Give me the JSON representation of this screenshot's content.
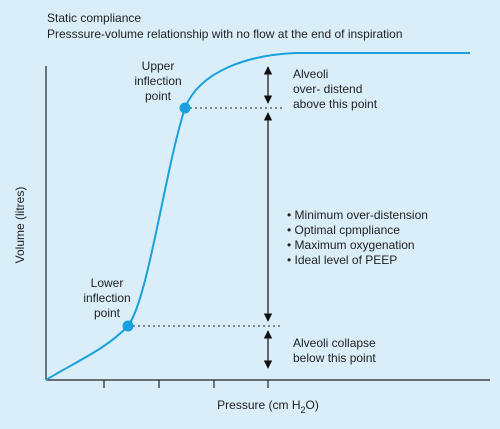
{
  "title": "Static compliance",
  "subtitle": "Presssure-volume relationship with no flow at the end of inspiration",
  "y_label": "Volume (litres)",
  "x_label": {
    "text": "Pressure (cm H",
    "subscript": "2",
    "end": "O)"
  },
  "upper_point": {
    "lines": [
      "Upper",
      "inflection",
      "point"
    ]
  },
  "lower_point": {
    "lines": [
      "Lower",
      "inflection",
      "point"
    ]
  },
  "top_note": {
    "lines": [
      "Alveoli",
      "over- distend",
      "above this point"
    ]
  },
  "middle_note": {
    "bullets": [
      "• Minimum over-distension",
      "• Optimal cpmpliance",
      "• Maximum oxygenation",
      "• Ideal level of PEEP"
    ]
  },
  "bottom_note": {
    "lines": [
      "Alveoli collapse",
      "below this point"
    ]
  }
}
